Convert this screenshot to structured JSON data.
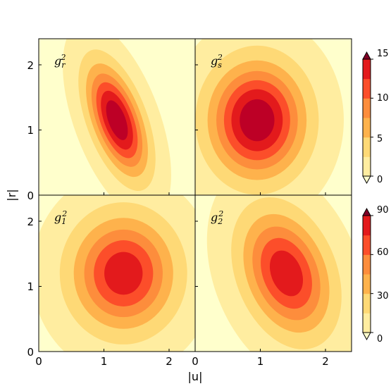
{
  "chart_data": [
    {
      "type": "contourf",
      "panel": "g_r^2",
      "label_base": "g",
      "label_sub": "r",
      "label_sup": "2",
      "colorbar": 0,
      "peak_value": 17.5,
      "peak_location": {
        "u": 1.2,
        "r": 1.15
      },
      "spread": {
        "u": 0.3,
        "r": 0.55
      },
      "correlation": -0.55,
      "xlim": [
        0,
        2.4
      ],
      "ylim": [
        0,
        2.4
      ]
    },
    {
      "type": "contourf",
      "panel": "g_s^2",
      "label_base": "g",
      "label_sub": "s",
      "label_sup": "2",
      "colorbar": 0,
      "peak_value": 17.5,
      "peak_location": {
        "u": 0.95,
        "r": 1.15
      },
      "spread": {
        "u": 0.48,
        "r": 0.58
      },
      "correlation": 0.0,
      "xlim": [
        0,
        2.4
      ],
      "ylim": [
        0,
        2.4
      ]
    },
    {
      "type": "contourf",
      "panel": "g_1^2",
      "label_base": "g",
      "label_sub": "1",
      "label_sup": "2",
      "colorbar": 1,
      "peak_value": 88,
      "peak_location": {
        "u": 1.3,
        "r": 1.2
      },
      "spread": {
        "u": 0.52,
        "r": 0.58
      },
      "correlation": 0.0,
      "xlim": [
        0,
        2.4
      ],
      "ylim": [
        0,
        2.4
      ]
    },
    {
      "type": "contourf",
      "panel": "g_2^2",
      "label_base": "g",
      "label_sub": "2",
      "label_sup": "2",
      "colorbar": 1,
      "peak_value": 88,
      "peak_location": {
        "u": 1.4,
        "r": 1.2
      },
      "spread": {
        "u": 0.45,
        "r": 0.62
      },
      "correlation": -0.3,
      "xlim": [
        0,
        2.4
      ],
      "ylim": [
        0,
        2.4
      ]
    }
  ],
  "colorbars": [
    {
      "levels": [
        0,
        2.5,
        5,
        7.5,
        10,
        12.5,
        15
      ],
      "ticks": [
        "0",
        "5",
        "10",
        "15"
      ],
      "extend": "both"
    },
    {
      "levels": [
        0,
        15,
        30,
        45,
        60,
        75,
        90
      ],
      "ticks": [
        "0",
        "30",
        "60",
        "90"
      ],
      "extend": "both"
    }
  ],
  "colors": [
    "#ffffcc",
    "#ffeda0",
    "#fed976",
    "#feb24c",
    "#fd8d3c",
    "#fc4e2a",
    "#e31a1c",
    "#bd0026",
    "#800026"
  ],
  "axes": {
    "xlabel": "|u|",
    "ylabel": "|r|",
    "xticks": [
      "0",
      "1",
      "2"
    ],
    "yticks": [
      "0",
      "1",
      "2"
    ],
    "tick_values": [
      0,
      1,
      2
    ]
  }
}
